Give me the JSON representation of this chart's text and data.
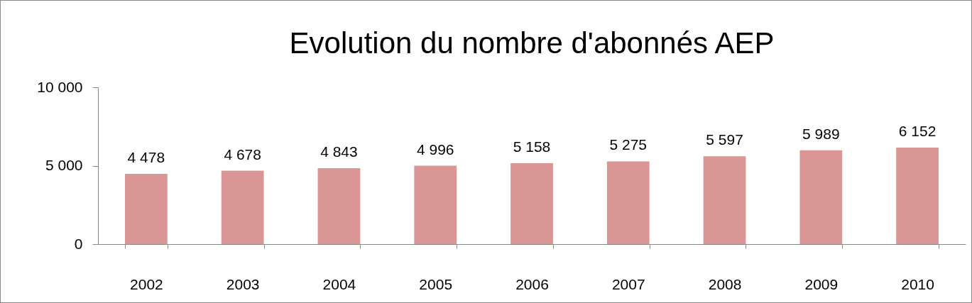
{
  "chart_data": {
    "type": "bar",
    "title": "Evolution du nombre d'abonnés AEP",
    "categories": [
      "2002",
      "2003",
      "2004",
      "2005",
      "2006",
      "2007",
      "2008",
      "2009",
      "2010"
    ],
    "values": [
      4478,
      4678,
      4843,
      4996,
      5158,
      5275,
      5597,
      5989,
      6152
    ],
    "value_labels": [
      "4 478",
      "4 678",
      "4 843",
      "4 996",
      "5 158",
      "5 275",
      "5 597",
      "5 989",
      "6 152"
    ],
    "color": "#d99694",
    "ylim": [
      0,
      10000
    ],
    "yticks": [
      {
        "value": 0,
        "label": "0"
      },
      {
        "value": 5000,
        "label": "5 000"
      },
      {
        "value": 10000,
        "label": "10 000"
      }
    ]
  }
}
